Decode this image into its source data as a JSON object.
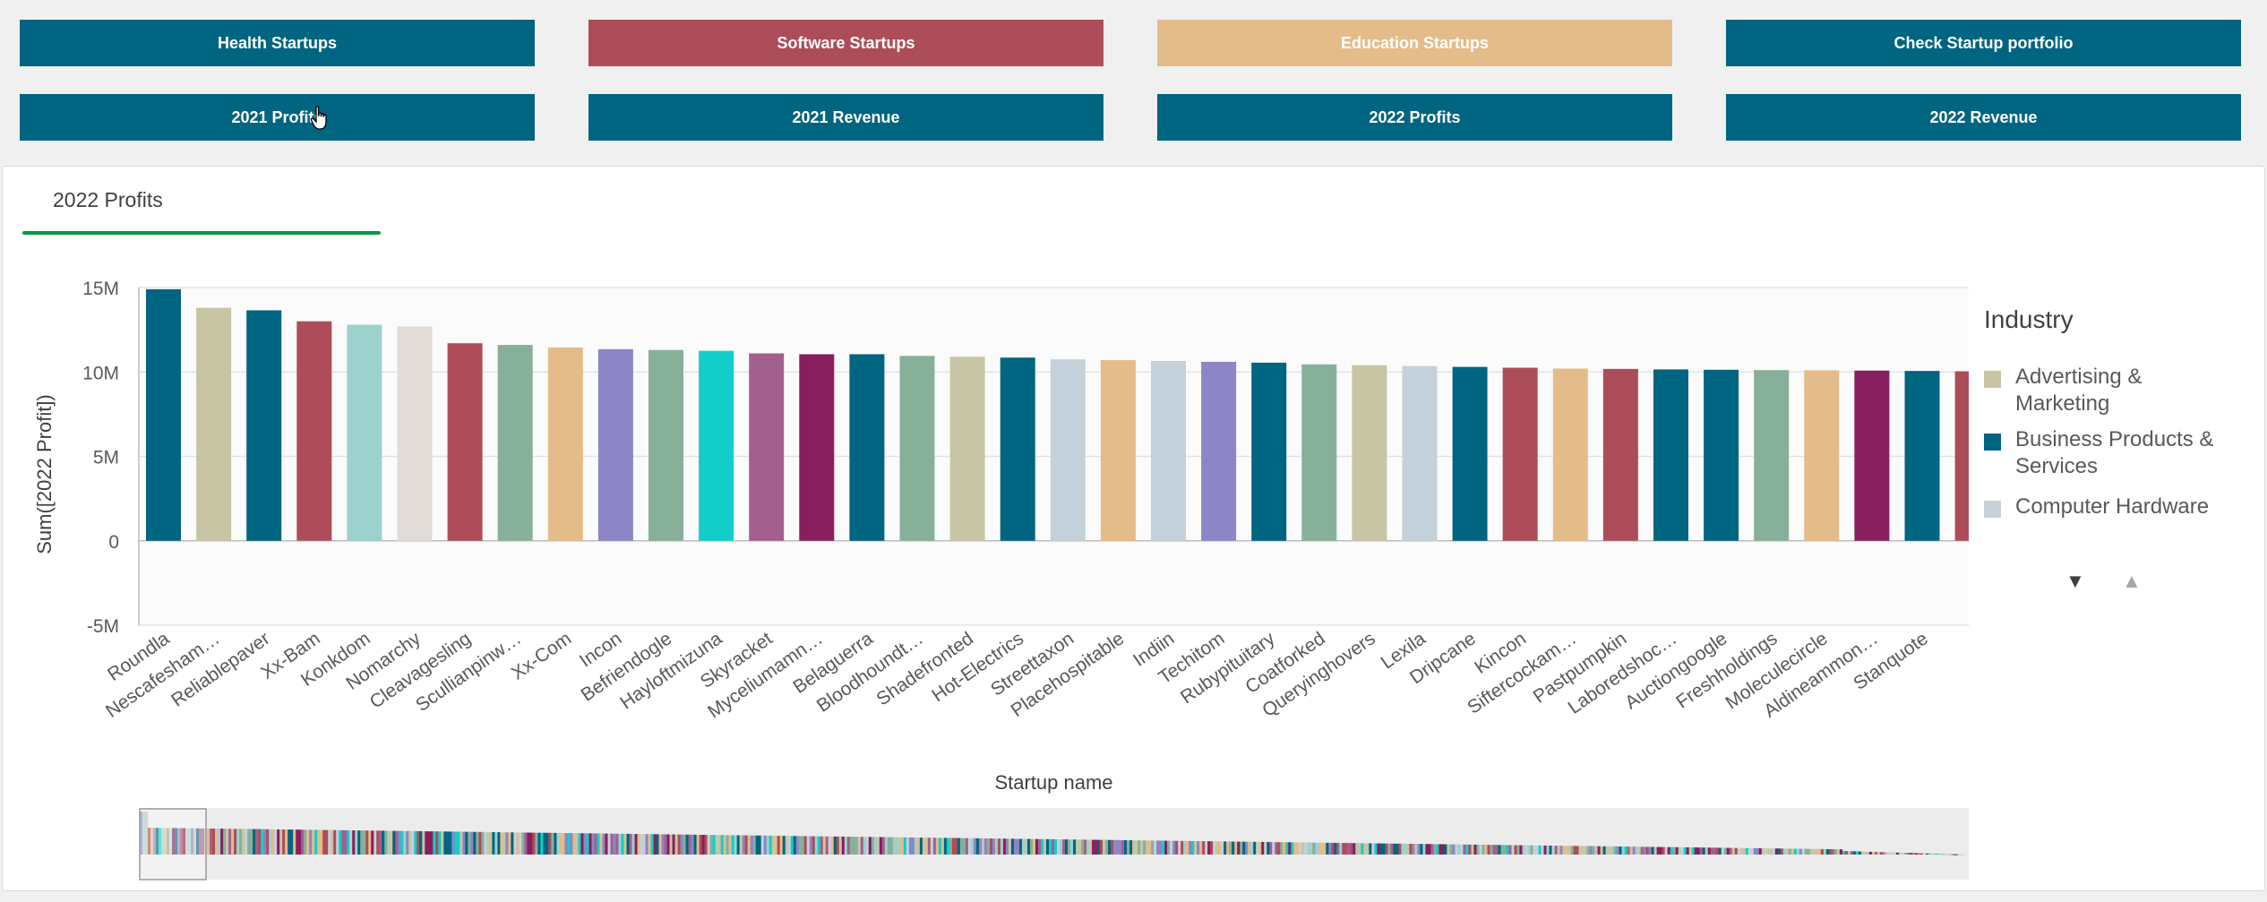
{
  "buttons": {
    "row1": [
      {
        "label": "Health Startups",
        "color": "#006580"
      },
      {
        "label": "Software Startups",
        "color": "#ad4d59"
      },
      {
        "label": "Education Startups",
        "color": "#e3bc8a"
      },
      {
        "label": "Check Startup portfolio",
        "color": "#006580"
      }
    ],
    "row2": [
      {
        "label": "2021 Profits",
        "color": "#006580"
      },
      {
        "label": "2021 Revenue",
        "color": "#006580"
      },
      {
        "label": "2022 Profits",
        "color": "#006580"
      },
      {
        "label": "2022 Revenue",
        "color": "#006580"
      }
    ]
  },
  "panel": {
    "tab_label": "2022 Profits"
  },
  "legend": {
    "title": "Industry",
    "items": [
      {
        "label": "Advertising & Marketing",
        "color": "#c8c5a4"
      },
      {
        "label": "Business Products & Services",
        "color": "#006580"
      },
      {
        "label": "Computer Hardware",
        "color": "#c5d1da"
      }
    ],
    "nav_down": "▼",
    "nav_up": "▲"
  },
  "chart_data": {
    "type": "bar",
    "title": "",
    "xlabel": "Startup name",
    "ylabel": "Sum([2022 Profit])",
    "ylim": [
      -5000000,
      15000000
    ],
    "yticks": [
      {
        "value": 15000000,
        "label": "15M"
      },
      {
        "value": 10000000,
        "label": "10M"
      },
      {
        "value": 5000000,
        "label": "5M"
      },
      {
        "value": 0,
        "label": "0"
      },
      {
        "value": -5000000,
        "label": "-5M"
      }
    ],
    "grid": true,
    "legend_position": "right",
    "categories": [
      "Roundla",
      "Nescafesham…",
      "Reliablepaver",
      "Xx-Bam",
      "Konkdom",
      "Nomarchy",
      "Cleavagesling",
      "Scullianpinw…",
      "Xx-Com",
      "Incon",
      "Befriendogle",
      "Hayloftmizuna",
      "Skyracket",
      "Myceliumamn…",
      "Belaguerra",
      "Bloodhoundt…",
      "Shadefronted",
      "Hot-Electrics",
      "Streettaxon",
      "Placehospitable",
      "Indiin",
      "Techitom",
      "Rubypituitary",
      "Coatforked",
      "Queryinghovers",
      "Lexila",
      "Dripcane",
      "Kincon",
      "Siftercockam…",
      "Pastpumpkin",
      "Laboredshoc…",
      "Auctiongoogle",
      "Freshholdings",
      "Moleculecircle",
      "Aldineammon…",
      "Stanquote",
      ""
    ],
    "values": [
      14900000,
      13800000,
      13650000,
      13000000,
      12800000,
      12700000,
      11700000,
      11600000,
      11450000,
      11350000,
      11300000,
      11250000,
      11100000,
      11050000,
      11050000,
      10950000,
      10900000,
      10850000,
      10750000,
      10700000,
      10650000,
      10600000,
      10550000,
      10450000,
      10400000,
      10350000,
      10300000,
      10250000,
      10200000,
      10180000,
      10150000,
      10130000,
      10110000,
      10100000,
      10080000,
      10060000,
      10040000
    ],
    "colors": [
      "#006580",
      "#c8c5a4",
      "#006580",
      "#ad4d59",
      "#9dd1cd",
      "#e1dcd8",
      "#ad4d59",
      "#87b09a",
      "#e3bc8a",
      "#8c86c6",
      "#87b09a",
      "#13cec8",
      "#a3608f",
      "#891e5e",
      "#006580",
      "#87b09a",
      "#c8c5a4",
      "#006580",
      "#c5d1da",
      "#e3bc8a",
      "#c5d1da",
      "#8c86c6",
      "#006580",
      "#87b09a",
      "#c8c5a4",
      "#c5d1da",
      "#006580",
      "#ad4d59",
      "#e3bc8a",
      "#ad4d59",
      "#006580",
      "#006580",
      "#87b09a",
      "#e3bc8a",
      "#891e5e",
      "#006580",
      "#ad4d59"
    ]
  }
}
